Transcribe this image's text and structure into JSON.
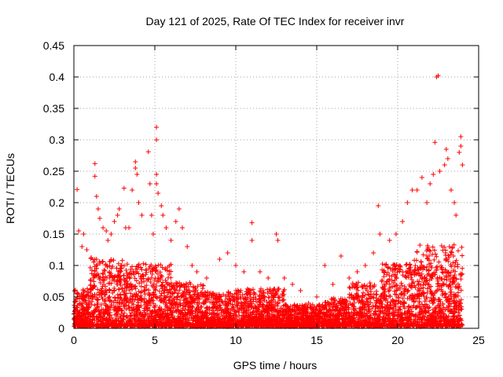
{
  "chart_data": {
    "type": "scatter",
    "title": "Day 121 of 2025, Rate Of TEC Index for receiver invr",
    "xlabel": "GPS time / hours",
    "ylabel": "ROTI / TECUs",
    "xlim": [
      0,
      25
    ],
    "ylim": [
      0,
      0.45
    ],
    "x_ticks": [
      0,
      5,
      10,
      15,
      20,
      25
    ],
    "y_ticks": [
      0,
      0.05,
      0.1,
      0.15,
      0.2,
      0.25,
      0.3,
      0.35,
      0.4,
      0.45
    ],
    "x_tick_labels": [
      "0",
      "5",
      "10",
      "15",
      "20",
      "25"
    ],
    "y_tick_labels": [
      "0",
      "0.05",
      "0.1",
      "0.15",
      "0.2",
      "0.25",
      "0.3",
      "0.35",
      "0.4",
      "0.45"
    ],
    "grid": true,
    "marker": "+",
    "color": "#ff0000",
    "series": [
      {
        "name": "ROTI",
        "points": [
          [
            0.2,
            0.221
          ],
          [
            0.3,
            0.155
          ],
          [
            0.5,
            0.13
          ],
          [
            0.6,
            0.15
          ],
          [
            0.8,
            0.125
          ],
          [
            1.3,
            0.262
          ],
          [
            1.3,
            0.242
          ],
          [
            1.4,
            0.21
          ],
          [
            1.5,
            0.19
          ],
          [
            1.6,
            0.175
          ],
          [
            1.8,
            0.16
          ],
          [
            2.0,
            0.155
          ],
          [
            2.1,
            0.14
          ],
          [
            2.3,
            0.15
          ],
          [
            2.5,
            0.17
          ],
          [
            2.7,
            0.18
          ],
          [
            2.8,
            0.19
          ],
          [
            3.1,
            0.223
          ],
          [
            3.2,
            0.16
          ],
          [
            3.4,
            0.16
          ],
          [
            3.6,
            0.22
          ],
          [
            3.8,
            0.265
          ],
          [
            3.8,
            0.255
          ],
          [
            3.9,
            0.245
          ],
          [
            4.0,
            0.2
          ],
          [
            4.2,
            0.18
          ],
          [
            4.6,
            0.281
          ],
          [
            4.7,
            0.23
          ],
          [
            4.8,
            0.18
          ],
          [
            4.9,
            0.15
          ],
          [
            5.1,
            0.32
          ],
          [
            5.1,
            0.3
          ],
          [
            5.1,
            0.245
          ],
          [
            5.1,
            0.23
          ],
          [
            5.2,
            0.215
          ],
          [
            5.4,
            0.195
          ],
          [
            5.5,
            0.18
          ],
          [
            5.7,
            0.16
          ],
          [
            6.0,
            0.14
          ],
          [
            6.3,
            0.17
          ],
          [
            6.5,
            0.19
          ],
          [
            6.7,
            0.16
          ],
          [
            7.0,
            0.13
          ],
          [
            7.3,
            0.1
          ],
          [
            7.6,
            0.09
          ],
          [
            8.2,
            0.08
          ],
          [
            9.0,
            0.11
          ],
          [
            9.5,
            0.12
          ],
          [
            10.0,
            0.1
          ],
          [
            10.5,
            0.09
          ],
          [
            11.0,
            0.168
          ],
          [
            11.0,
            0.14
          ],
          [
            11.5,
            0.09
          ],
          [
            12.0,
            0.08
          ],
          [
            12.5,
            0.15
          ],
          [
            12.6,
            0.14
          ],
          [
            13.0,
            0.08
          ],
          [
            13.5,
            0.07
          ],
          [
            14.0,
            0.06
          ],
          [
            14.5,
            0.04
          ],
          [
            15.0,
            0.05
          ],
          [
            15.5,
            0.1
          ],
          [
            16.0,
            0.07
          ],
          [
            16.5,
            0.115
          ],
          [
            17.0,
            0.08
          ],
          [
            17.5,
            0.09
          ],
          [
            18.0,
            0.1
          ],
          [
            18.5,
            0.12
          ],
          [
            18.8,
            0.195
          ],
          [
            18.9,
            0.15
          ],
          [
            19.5,
            0.14
          ],
          [
            19.9,
            0.15
          ],
          [
            20.3,
            0.17
          ],
          [
            20.6,
            0.2
          ],
          [
            20.9,
            0.22
          ],
          [
            21.2,
            0.22
          ],
          [
            21.5,
            0.24
          ],
          [
            21.8,
            0.2
          ],
          [
            22.0,
            0.23
          ],
          [
            22.2,
            0.245
          ],
          [
            22.3,
            0.296
          ],
          [
            22.4,
            0.4
          ],
          [
            22.5,
            0.402
          ],
          [
            22.6,
            0.25
          ],
          [
            22.9,
            0.26
          ],
          [
            23.0,
            0.285
          ],
          [
            23.1,
            0.27
          ],
          [
            23.3,
            0.22
          ],
          [
            23.5,
            0.2
          ],
          [
            23.6,
            0.18
          ],
          [
            23.8,
            0.28
          ],
          [
            23.9,
            0.305
          ],
          [
            23.9,
            0.29
          ],
          [
            24.0,
            0.26
          ]
        ]
      }
    ]
  }
}
